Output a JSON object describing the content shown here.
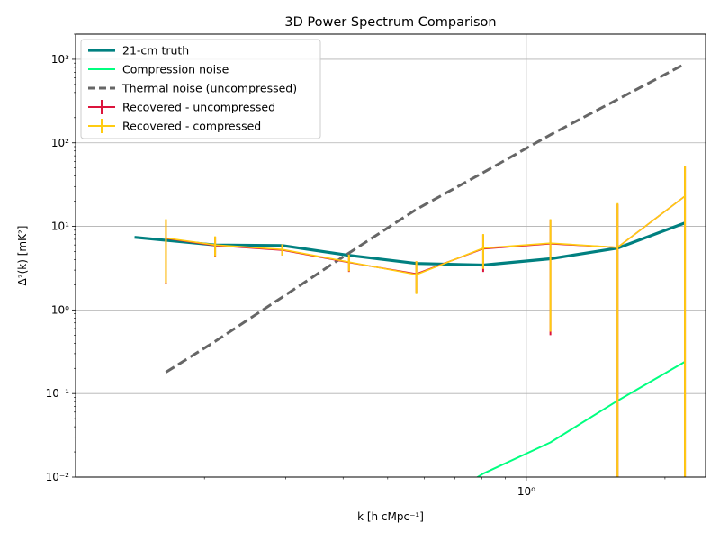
{
  "chart_data": {
    "type": "line",
    "title": "3D Power Spectrum Comparison",
    "xlabel": "k [h cMpc⁻¹]",
    "ylabel": "Δ²(k) [mK²]",
    "xscale": "log",
    "yscale": "log",
    "xlim": [
      0.105,
      2.45
    ],
    "ylim": [
      0.01,
      2000
    ],
    "x_ticks": [
      {
        "value": 1,
        "label": "10⁰"
      }
    ],
    "x_minor_ticks": [
      0.2,
      0.3,
      0.4,
      0.5,
      0.6,
      0.7,
      0.8,
      0.9,
      2
    ],
    "y_ticks": [
      {
        "value": 0.01,
        "label": "10⁻²"
      },
      {
        "value": 0.1,
        "label": "10⁻¹"
      },
      {
        "value": 1,
        "label": "10⁰"
      },
      {
        "value": 10,
        "label": "10¹"
      },
      {
        "value": 100,
        "label": "10²"
      },
      {
        "value": 1000,
        "label": "10³"
      }
    ],
    "grid": true,
    "legend_position": "top-left",
    "series": [
      {
        "name": "21-cm truth",
        "color": "#008080",
        "style": "solid",
        "x": [
          0.141,
          0.211,
          0.295,
          0.412,
          0.577,
          0.806,
          1.128,
          1.578,
          2.21
        ],
        "y": [
          7.4,
          6.0,
          5.9,
          4.5,
          3.6,
          3.45,
          4.1,
          5.5,
          11.0
        ]
      },
      {
        "name": "Compression noise",
        "color": "#00ff7f",
        "style": "solid",
        "x": [
          0.577,
          0.806,
          1.128,
          1.578,
          2.21
        ],
        "y": [
          0.0035,
          0.011,
          0.026,
          0.082,
          0.24
        ]
      },
      {
        "name": "Thermal noise (uncompressed)",
        "color": "#666666",
        "style": "dashed",
        "x": [
          0.165,
          0.211,
          0.295,
          0.412,
          0.577,
          0.806,
          1.128,
          1.578,
          2.21
        ],
        "y": [
          0.18,
          0.42,
          1.42,
          4.8,
          16.0,
          44.0,
          125.0,
          330.0,
          880.0
        ]
      },
      {
        "name": "Recovered - uncompressed",
        "color": "#dc143c",
        "style": "errorbar",
        "x": [
          0.165,
          0.211,
          0.295,
          0.412,
          0.577,
          0.806,
          1.128,
          1.578,
          2.21
        ],
        "y": [
          7.2,
          5.9,
          5.2,
          3.7,
          2.7,
          5.4,
          6.2,
          5.6,
          23.0
        ],
        "yerr_low": [
          2.05,
          4.3,
          4.5,
          2.85,
          1.6,
          2.85,
          0.5,
          0.01,
          0.01
        ],
        "yerr_high": [
          12.0,
          7.5,
          6.0,
          4.5,
          3.8,
          8.0,
          12.0,
          18.5,
          52.0
        ]
      },
      {
        "name": "Recovered - compressed",
        "color": "#ffcc11",
        "style": "errorbar",
        "x": [
          0.165,
          0.211,
          0.295,
          0.412,
          0.577,
          0.806,
          1.128,
          1.578,
          2.21
        ],
        "y": [
          7.25,
          6.0,
          5.3,
          3.75,
          2.65,
          5.5,
          6.3,
          5.6,
          23.0
        ],
        "yerr_low": [
          2.1,
          4.4,
          4.5,
          2.9,
          1.55,
          3.1,
          0.55,
          0.01,
          0.01
        ],
        "yerr_high": [
          12.2,
          7.6,
          6.1,
          4.6,
          3.85,
          8.1,
          12.2,
          19.0,
          53.0
        ]
      }
    ]
  }
}
